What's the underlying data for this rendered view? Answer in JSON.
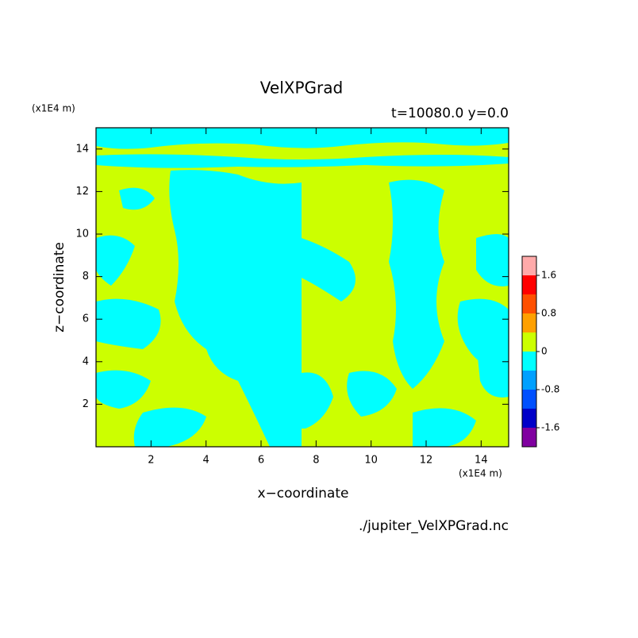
{
  "chart_data": {
    "type": "contour",
    "title": "VelXPGrad",
    "subtitle": "t=10080.0 y=0.0",
    "xlabel": "x−coordinate",
    "ylabel": "z−coordinate",
    "xunit": "(x1E4 m)",
    "yunit": "(x1E4 m)",
    "source": "./jupiter_VelXPGrad.nc",
    "xlim": [
      0,
      15
    ],
    "ylim": [
      0,
      15
    ],
    "xticks": [
      2,
      4,
      6,
      8,
      10,
      12,
      14
    ],
    "yticks": [
      2,
      4,
      6,
      8,
      10,
      12,
      14
    ],
    "colorbar": {
      "levels": [
        -2,
        -1.6,
        -1.2,
        -0.8,
        -0.4,
        0,
        0.4,
        0.8,
        1.2,
        1.6,
        2
      ],
      "colors": [
        "#8000a0",
        "#0000c8",
        "#0050ff",
        "#00a0ff",
        "#00ffff",
        "#ccff00",
        "#ffa000",
        "#ff5000",
        "#ff0000",
        "#ffaaaa"
      ],
      "ticks": [
        -1.6,
        -0.8,
        0,
        0.8,
        1.6
      ]
    }
  }
}
